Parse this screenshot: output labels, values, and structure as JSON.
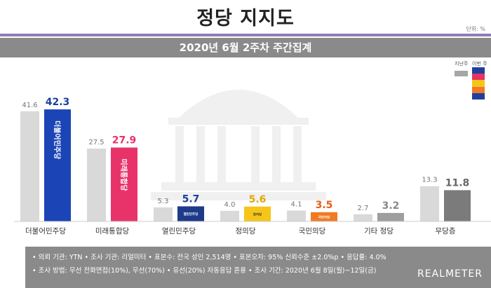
{
  "page": {
    "title": "정당 지지도",
    "unit": "단위: %",
    "subtitle": "2020년 6월 2주차 주간집계"
  },
  "legend": {
    "prev_label": "지난주",
    "curr_label": "이번 주",
    "curr_swatches": [
      "#1e3f9e",
      "#e8335f",
      "#f6c41e",
      "#f07a23",
      "#1e3f9e"
    ]
  },
  "chart_data": {
    "type": "bar",
    "categories": [
      "더불어민주당",
      "미래통합당",
      "열린민주당",
      "정의당",
      "국민의당",
      "기타 정당",
      "무당층"
    ],
    "series": [
      {
        "name": "지난주",
        "values": [
          41.6,
          27.5,
          5.3,
          4.0,
          4.1,
          2.7,
          13.3
        ]
      },
      {
        "name": "이번 주",
        "values": [
          42.3,
          27.9,
          5.7,
          5.6,
          3.5,
          3.2,
          11.8
        ]
      }
    ],
    "colors": {
      "prev": "#d9d9d9",
      "current": [
        "#1b45b6",
        "#e8336a",
        "#1e3a8a",
        "#f5c518",
        "#f07a23",
        "#9e9e9e",
        "#7b7b7b"
      ],
      "current_value": [
        "#1e3f9e",
        "#e8336a",
        "#1e3f9e",
        "#e0a800",
        "#e85d1a",
        "#888888",
        "#666666"
      ]
    },
    "bar_logos": [
      "더불어민주당",
      "미래통합당",
      "열린민주당",
      "정의당",
      "국민의당",
      "",
      ""
    ],
    "ylim": [
      0,
      45
    ],
    "grid": false,
    "legend_position": "top-right"
  },
  "footer": {
    "line1": "• 의뢰 기관: YTN • 조사 기관: 리얼미터 • 표본수: 전국 성인 2,514명 • 표본오차: 95% 신뢰수준 ±2.0%p • 응답률: 4.0%",
    "line2": "• 조사 방법: 무선 전화면접(10%), 무선(70%) • 유선(20%) 자동응답 혼용 • 조사 기간: 2020년 6월 8일(월)~12일(금)",
    "brand": "REALMETER"
  }
}
